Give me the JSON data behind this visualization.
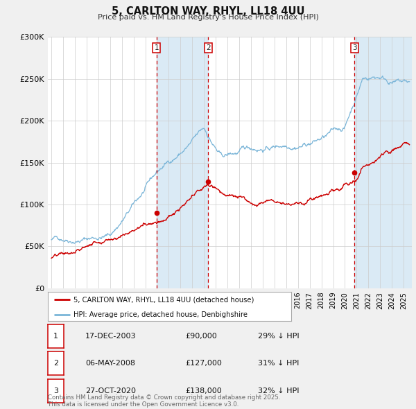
{
  "title": "5, CARLTON WAY, RHYL, LL18 4UU",
  "subtitle": "Price paid vs. HM Land Registry's House Price Index (HPI)",
  "hpi_color": "#7ab5d8",
  "price_color": "#cc0000",
  "bg_color": "#f0f0f0",
  "plot_bg_color": "#ffffff",
  "grid_color": "#cccccc",
  "shade_color": "#daeaf5",
  "ylim": [
    0,
    300000
  ],
  "yticks": [
    0,
    50000,
    100000,
    150000,
    200000,
    250000,
    300000
  ],
  "xlim_start": 1994.7,
  "xlim_end": 2025.7,
  "purchases": [
    {
      "label": "1",
      "date_str": "17-DEC-2003",
      "date_num": 2003.96,
      "price": 90000,
      "pct": "29%",
      "marker_y": 90000
    },
    {
      "label": "2",
      "date_str": "06-MAY-2008",
      "date_num": 2008.35,
      "price": 127000,
      "pct": "31%",
      "marker_y": 127000
    },
    {
      "label": "3",
      "date_str": "27-OCT-2020",
      "date_num": 2020.82,
      "price": 138000,
      "pct": "32%",
      "marker_y": 138000
    }
  ],
  "legend_label_red": "5, CARLTON WAY, RHYL, LL18 4UU (detached house)",
  "legend_label_blue": "HPI: Average price, detached house, Denbighshire",
  "footnote": "Contains HM Land Registry data © Crown copyright and database right 2025.\nThis data is licensed under the Open Government Licence v3.0."
}
